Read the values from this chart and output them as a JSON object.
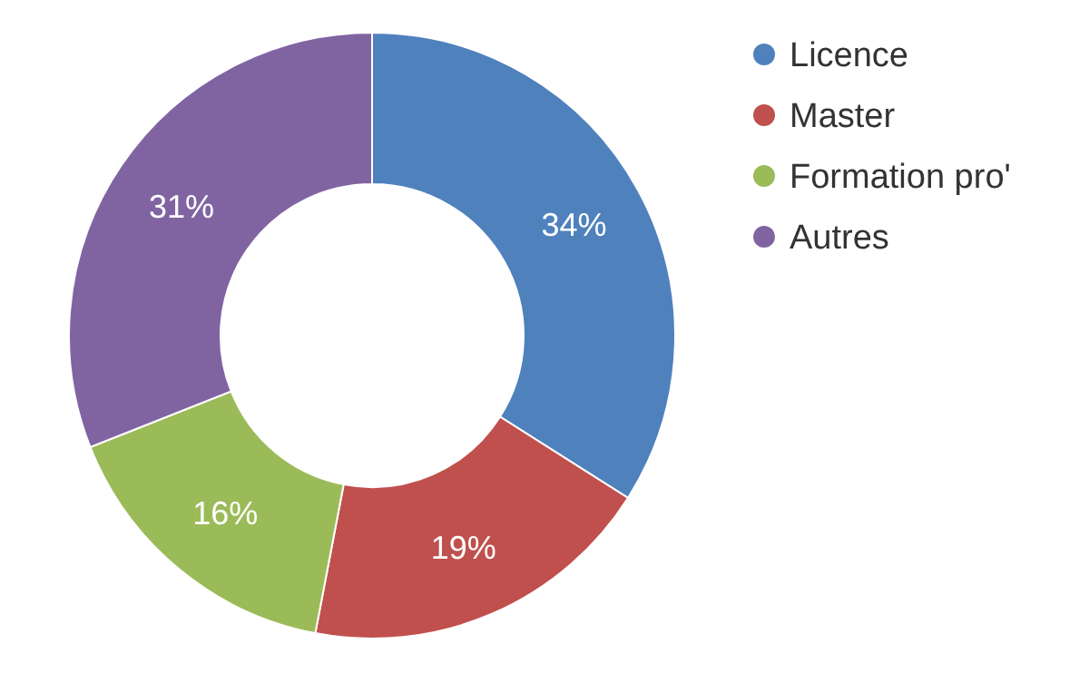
{
  "chart_data": {
    "type": "donut",
    "categories": [
      "Licence",
      "Master",
      "Formation pro'",
      "Autres"
    ],
    "values": [
      34,
      19,
      16,
      31
    ],
    "colors": [
      "#4f81bd",
      "#c0504d",
      "#9bbb59",
      "#8064a2"
    ],
    "value_labels": [
      "34%",
      "19%",
      "16%",
      "31%"
    ],
    "legend": "right"
  }
}
